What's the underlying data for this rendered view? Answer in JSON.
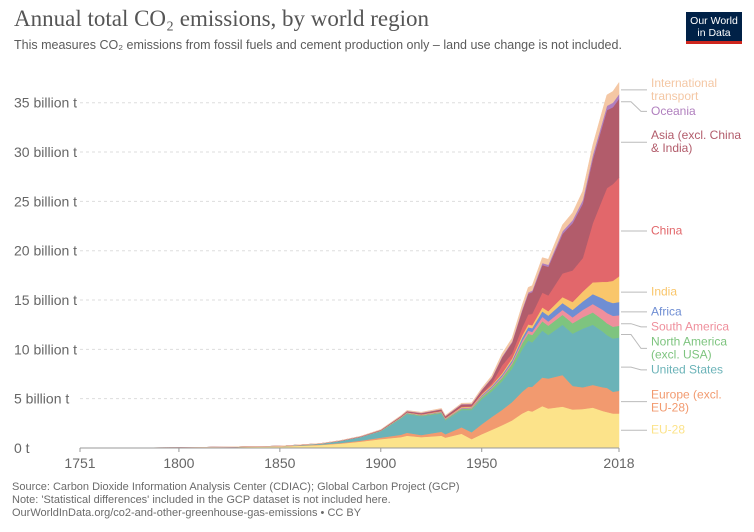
{
  "header": {
    "title": "Annual total CO₂ emissions, by world region",
    "subtitle": "This measures CO₂ emissions from fossil fuels and cement production only – land use change is not included.",
    "logo_line1": "Our World",
    "logo_line2": "in Data"
  },
  "footer": {
    "source": "Source: Carbon Dioxide Information Analysis Center (CDIAC); Global Carbon Project (GCP)",
    "note": "Note: 'Statistical differences' included in the GCP dataset is not included here.",
    "url": "OurWorldInData.org/co2-and-other-greenhouse-gas-emissions • CC BY"
  },
  "colors": {
    "eu28": "#fce38a",
    "europe": "#f29a6f",
    "usa": "#6bb3b8",
    "north_america": "#7ec47f",
    "south_america": "#ef8f9c",
    "africa": "#6f8ed3",
    "india": "#f9c66b",
    "china": "#e2676b",
    "asia": "#b25c6b",
    "oceania": "#b07fbe",
    "intl": "#f4c7a4"
  },
  "chart_data": {
    "type": "area",
    "stacked": true,
    "title": "Annual total CO₂ emissions, by world region",
    "xlabel": "",
    "ylabel": "",
    "xlim": [
      1751,
      2018
    ],
    "ylim": [
      0,
      37
    ],
    "y_unit": "billion t",
    "x_ticks": [
      "1751",
      "1800",
      "1850",
      "1900",
      "1950",
      "2018"
    ],
    "y_ticks": [
      "0 t",
      "5 billion t",
      "10 billion t",
      "15 billion t",
      "20 billion t",
      "25 billion t",
      "30 billion t",
      "35 billion t"
    ],
    "grid": "horizontal dashed",
    "legend": "right, labels at series end",
    "x": [
      1751,
      1800,
      1850,
      1870,
      1880,
      1890,
      1900,
      1910,
      1913,
      1920,
      1930,
      1932,
      1940,
      1945,
      1950,
      1955,
      1960,
      1965,
      1970,
      1973,
      1975,
      1980,
      1983,
      1990,
      1995,
      2000,
      2005,
      2010,
      2012,
      2015,
      2018
    ],
    "series": [
      {
        "name": "EU-28",
        "color_key": "eu28",
        "values": [
          0.01,
          0.03,
          0.15,
          0.3,
          0.45,
          0.65,
          0.9,
          1.1,
          1.25,
          1.1,
          1.25,
          1.05,
          1.45,
          0.9,
          1.4,
          1.85,
          2.3,
          2.8,
          3.5,
          3.8,
          3.7,
          4.25,
          4.0,
          4.2,
          3.9,
          3.95,
          4.1,
          3.75,
          3.65,
          3.5,
          3.5
        ]
      },
      {
        "name": "Europe (excl. EU-28)",
        "color_key": "europe",
        "values": [
          0.0,
          0.0,
          0.02,
          0.04,
          0.06,
          0.1,
          0.15,
          0.25,
          0.3,
          0.22,
          0.4,
          0.35,
          0.65,
          0.7,
          1.0,
          1.3,
          1.55,
          1.85,
          2.2,
          2.4,
          2.5,
          2.9,
          3.05,
          3.2,
          2.4,
          2.2,
          2.3,
          2.4,
          2.45,
          2.2,
          2.3
        ]
      },
      {
        "name": "United States",
        "color_key": "usa",
        "values": [
          0.0,
          0.0,
          0.02,
          0.1,
          0.2,
          0.35,
          0.65,
          1.65,
          1.9,
          1.9,
          1.85,
          1.4,
          1.75,
          2.25,
          2.55,
          2.6,
          2.9,
          3.4,
          4.3,
          4.7,
          4.5,
          4.75,
          4.4,
          5.1,
          5.3,
          5.95,
          6.1,
          5.65,
          5.35,
          5.4,
          5.4
        ]
      },
      {
        "name": "North America (excl. USA)",
        "color_key": "north_america",
        "values": [
          0.0,
          0.0,
          0.0,
          0.0,
          0.01,
          0.02,
          0.03,
          0.06,
          0.07,
          0.08,
          0.1,
          0.09,
          0.12,
          0.15,
          0.2,
          0.28,
          0.35,
          0.45,
          0.6,
          0.7,
          0.75,
          0.95,
          0.95,
          1.0,
          1.05,
          1.15,
          1.25,
          1.2,
          1.2,
          1.2,
          1.2
        ]
      },
      {
        "name": "South America",
        "color_key": "south_america",
        "values": [
          0.0,
          0.0,
          0.0,
          0.0,
          0.0,
          0.0,
          0.01,
          0.02,
          0.02,
          0.03,
          0.04,
          0.04,
          0.05,
          0.06,
          0.08,
          0.1,
          0.15,
          0.18,
          0.25,
          0.3,
          0.32,
          0.45,
          0.42,
          0.5,
          0.6,
          0.75,
          0.85,
          1.0,
          1.05,
          1.1,
          1.05
        ]
      },
      {
        "name": "Africa",
        "color_key": "africa",
        "values": [
          0.0,
          0.0,
          0.0,
          0.0,
          0.0,
          0.01,
          0.01,
          0.02,
          0.03,
          0.03,
          0.04,
          0.04,
          0.05,
          0.06,
          0.1,
          0.12,
          0.15,
          0.2,
          0.3,
          0.35,
          0.38,
          0.55,
          0.6,
          0.7,
          0.75,
          0.85,
          1.0,
          1.15,
          1.2,
          1.3,
          1.35
        ]
      },
      {
        "name": "India",
        "color_key": "india",
        "values": [
          0.0,
          0.0,
          0.0,
          0.01,
          0.01,
          0.02,
          0.03,
          0.04,
          0.05,
          0.05,
          0.06,
          0.06,
          0.08,
          0.08,
          0.1,
          0.12,
          0.15,
          0.2,
          0.25,
          0.28,
          0.3,
          0.4,
          0.45,
          0.6,
          0.8,
          1.0,
          1.2,
          1.7,
          1.95,
          2.25,
          2.6
        ]
      },
      {
        "name": "China",
        "color_key": "china",
        "values": [
          0.0,
          0.0,
          0.0,
          0.0,
          0.0,
          0.0,
          0.0,
          0.01,
          0.01,
          0.01,
          0.02,
          0.02,
          0.05,
          0.05,
          0.08,
          0.2,
          0.8,
          0.5,
          0.8,
          1.0,
          1.15,
          1.5,
          1.6,
          2.4,
          3.2,
          3.4,
          6.0,
          8.5,
          9.5,
          9.8,
          10.0
        ]
      },
      {
        "name": "Asia (excl. China & India)",
        "color_key": "asia",
        "values": [
          0.0,
          0.0,
          0.0,
          0.01,
          0.02,
          0.03,
          0.05,
          0.08,
          0.1,
          0.12,
          0.15,
          0.16,
          0.22,
          0.18,
          0.35,
          0.5,
          0.8,
          1.1,
          1.7,
          2.1,
          2.2,
          2.8,
          2.9,
          4.0,
          4.8,
          5.5,
          6.5,
          7.5,
          7.9,
          7.8,
          8.0
        ]
      },
      {
        "name": "Oceania",
        "color_key": "oceania",
        "values": [
          0.0,
          0.0,
          0.0,
          0.0,
          0.01,
          0.01,
          0.02,
          0.02,
          0.03,
          0.03,
          0.03,
          0.03,
          0.04,
          0.04,
          0.05,
          0.06,
          0.08,
          0.1,
          0.13,
          0.15,
          0.16,
          0.2,
          0.21,
          0.28,
          0.3,
          0.38,
          0.42,
          0.43,
          0.44,
          0.45,
          0.45
        ]
      },
      {
        "name": "International transport",
        "color_key": "intl",
        "values": [
          0.0,
          0.0,
          0.0,
          0.0,
          0.0,
          0.01,
          0.03,
          0.05,
          0.05,
          0.06,
          0.07,
          0.06,
          0.08,
          0.1,
          0.15,
          0.2,
          0.3,
          0.35,
          0.45,
          0.5,
          0.5,
          0.55,
          0.55,
          0.65,
          0.75,
          0.9,
          1.0,
          1.1,
          1.1,
          1.15,
          1.2
        ]
      }
    ],
    "legend_labels": [
      {
        "key": "intl",
        "lines": [
          "International",
          "transport"
        ],
        "end_y": 36.3
      },
      {
        "key": "oceania",
        "lines": [
          "Oceania"
        ],
        "end_y": 35.1
      },
      {
        "key": "asia",
        "lines": [
          "Asia (excl. China",
          "& India)"
        ],
        "end_y": 31
      },
      {
        "key": "china",
        "lines": [
          "China"
        ],
        "end_y": 22
      },
      {
        "key": "india",
        "lines": [
          "India"
        ],
        "end_y": 15.8
      },
      {
        "key": "africa",
        "lines": [
          "Africa"
        ],
        "end_y": 13.8
      },
      {
        "key": "south_america",
        "lines": [
          "South America"
        ],
        "end_y": 12.6
      },
      {
        "key": "north_america",
        "lines": [
          "North America",
          "(excl. USA)"
        ],
        "end_y": 11.5
      },
      {
        "key": "usa",
        "lines": [
          "United States"
        ],
        "end_y": 8.2
      },
      {
        "key": "europe",
        "lines": [
          "Europe (excl.",
          "EU-28)"
        ],
        "end_y": 4.7
      },
      {
        "key": "eu28",
        "lines": [
          "EU-28"
        ],
        "end_y": 1.8
      }
    ]
  }
}
